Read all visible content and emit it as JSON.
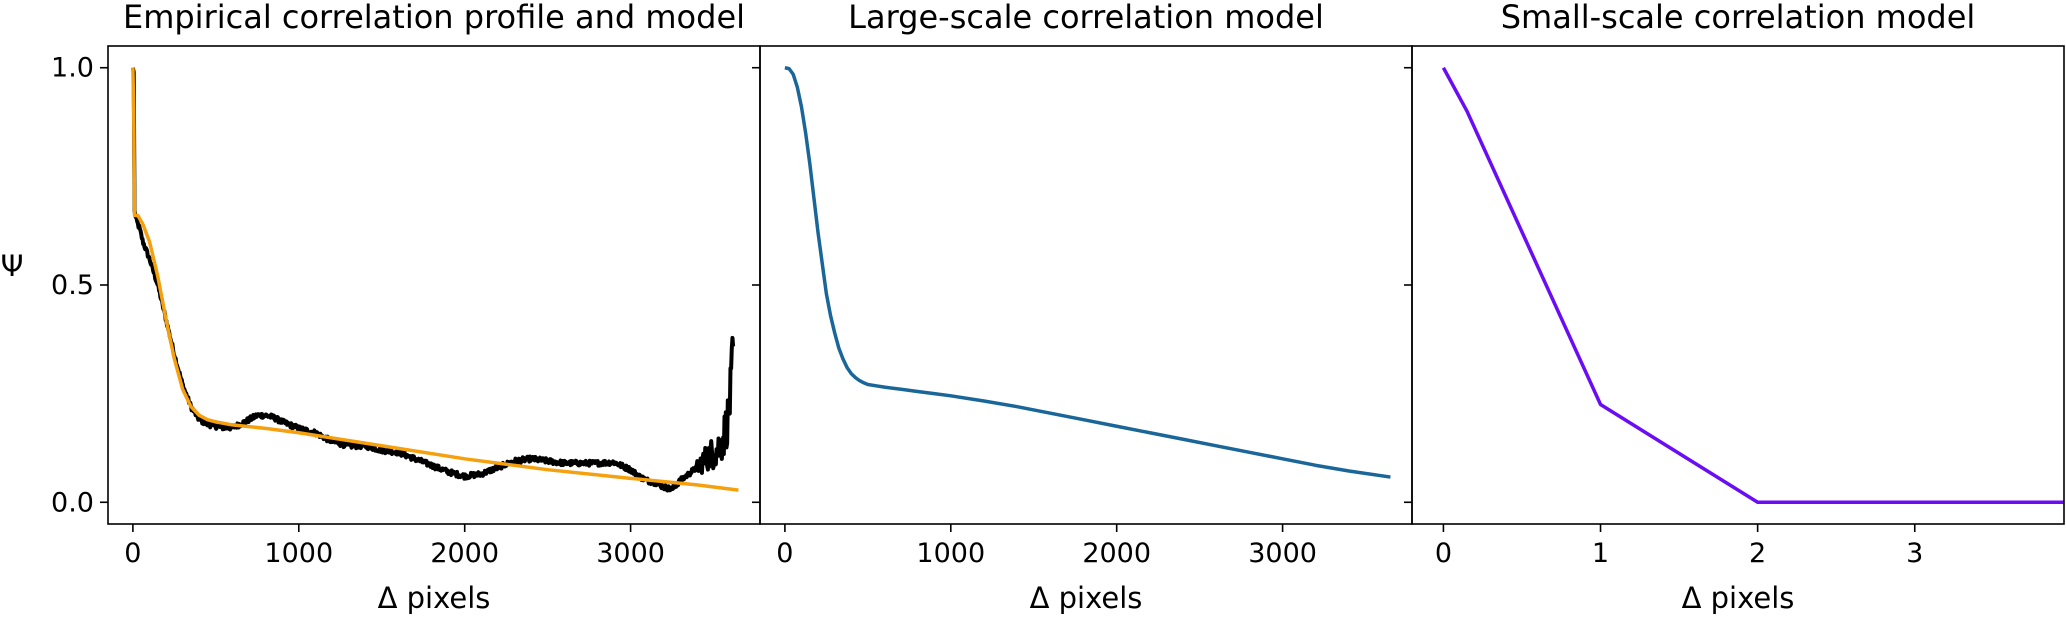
{
  "chart_data": [
    {
      "type": "line",
      "title": "Empirical correlation profile and model",
      "xlabel": "Δ pixels",
      "ylabel": "Ψ",
      "xlim": [
        -150,
        3780
      ],
      "ylim": [
        -0.05,
        1.05
      ],
      "xticks": [
        0,
        1000,
        2000,
        3000
      ],
      "yticks": [
        0.0,
        0.5,
        1.0
      ],
      "ytick_labels": [
        "0.0",
        "0.5",
        "1.0"
      ],
      "grid": false,
      "series": [
        {
          "color": "#000000",
          "style": "noisy",
          "x": [
            0,
            5,
            10,
            20,
            40,
            60,
            100,
            150,
            200,
            250,
            300,
            350,
            400,
            450,
            500,
            550,
            600,
            650,
            700,
            750,
            800,
            850,
            900,
            1000,
            1100,
            1200,
            1300,
            1400,
            1500,
            1600,
            1700,
            1800,
            1900,
            2000,
            2100,
            2200,
            2300,
            2400,
            2500,
            2600,
            2700,
            2800,
            2900,
            3000,
            3050,
            3100,
            3150,
            3200,
            3250,
            3300,
            3350,
            3400,
            3450,
            3500,
            3520,
            3540,
            3560,
            3580,
            3590,
            3600,
            3610,
            3620
          ],
          "y": [
            1.0,
            0.99,
            0.67,
            0.65,
            0.63,
            0.6,
            0.56,
            0.5,
            0.42,
            0.34,
            0.27,
            0.22,
            0.19,
            0.18,
            0.175,
            0.172,
            0.172,
            0.18,
            0.19,
            0.2,
            0.2,
            0.195,
            0.185,
            0.17,
            0.16,
            0.14,
            0.13,
            0.13,
            0.12,
            0.115,
            0.1,
            0.085,
            0.07,
            0.06,
            0.065,
            0.08,
            0.095,
            0.1,
            0.095,
            0.09,
            0.09,
            0.09,
            0.092,
            0.075,
            0.06,
            0.05,
            0.045,
            0.035,
            0.03,
            0.05,
            0.065,
            0.08,
            0.1,
            0.115,
            0.12,
            0.13,
            0.15,
            0.18,
            0.2,
            0.24,
            0.3,
            0.36
          ]
        },
        {
          "color": "#f5a00f",
          "x": [
            0,
            5,
            10,
            30,
            60,
            100,
            150,
            200,
            250,
            300,
            350,
            400,
            450,
            500,
            600,
            800,
            1000,
            1500,
            2000,
            2500,
            3000,
            3400,
            3650
          ],
          "y": [
            1.0,
            0.9,
            0.66,
            0.66,
            0.64,
            0.6,
            0.52,
            0.42,
            0.33,
            0.26,
            0.22,
            0.2,
            0.19,
            0.185,
            0.178,
            0.17,
            0.16,
            0.13,
            0.1,
            0.075,
            0.055,
            0.04,
            0.028
          ]
        }
      ]
    },
    {
      "type": "line",
      "title": "Large-scale correlation model",
      "xlabel": "Δ pixels",
      "ylabel": "",
      "xlim": [
        -150,
        3780
      ],
      "ylim": [
        -0.05,
        1.05
      ],
      "xticks": [
        0,
        1000,
        2000,
        3000
      ],
      "yticks": [
        0.0,
        0.5,
        1.0
      ],
      "grid": false,
      "series": [
        {
          "color": "#1a6699",
          "x": [
            0,
            25,
            50,
            75,
            100,
            125,
            150,
            175,
            200,
            225,
            250,
            275,
            300,
            325,
            350,
            375,
            400,
            425,
            450,
            475,
            500,
            550,
            600,
            700,
            800,
            900,
            1000,
            1200,
            1400,
            1600,
            1800,
            2000,
            2200,
            2400,
            2600,
            2800,
            3000,
            3200,
            3400,
            3650
          ],
          "y": [
            1.0,
            0.998,
            0.985,
            0.955,
            0.91,
            0.85,
            0.78,
            0.7,
            0.62,
            0.55,
            0.48,
            0.43,
            0.39,
            0.355,
            0.33,
            0.31,
            0.296,
            0.287,
            0.28,
            0.275,
            0.271,
            0.268,
            0.265,
            0.26,
            0.255,
            0.25,
            0.245,
            0.233,
            0.22,
            0.205,
            0.19,
            0.175,
            0.16,
            0.145,
            0.13,
            0.115,
            0.1,
            0.085,
            0.072,
            0.058
          ]
        }
      ]
    },
    {
      "type": "line",
      "title": "Small-scale correlation model",
      "xlabel": "Δ pixels",
      "ylabel": "",
      "xlim": [
        -0.2,
        3.95
      ],
      "ylim": [
        -0.05,
        1.05
      ],
      "xticks": [
        0,
        1,
        2,
        3
      ],
      "yticks": [
        0.0,
        0.5,
        1.0
      ],
      "grid": false,
      "series": [
        {
          "color": "#6a0df5",
          "x": [
            0,
            0.15,
            1,
            2,
            3.95
          ],
          "y": [
            1.0,
            0.9,
            0.225,
            0.0,
            0.0
          ]
        }
      ]
    }
  ]
}
